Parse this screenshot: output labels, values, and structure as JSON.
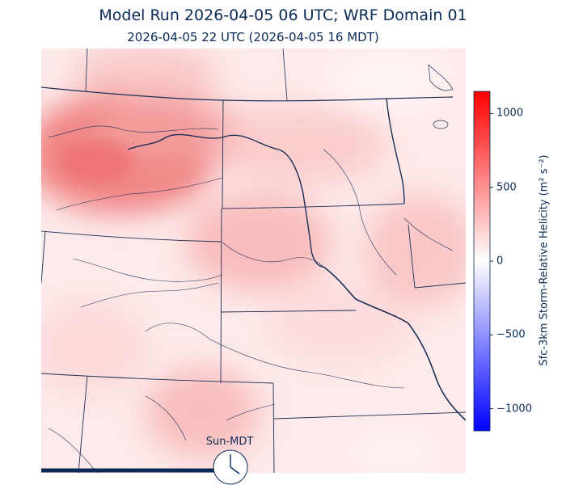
{
  "header": {
    "title": "Model Run 2026-04-05 06 UTC; WRF Domain 01",
    "subtitle": "2026-04-05 22 UTC  (2026-04-05 16 MDT)"
  },
  "colorbar": {
    "label": "Sfc-3km Storm-Relative Helicity (m² s⁻²)",
    "min": -1150,
    "max": 1150,
    "ticks": [
      {
        "value": 1000,
        "label": "1000"
      },
      {
        "value": 500,
        "label": "500"
      },
      {
        "value": 0,
        "label": "0"
      },
      {
        "value": -500,
        "label": "−500"
      },
      {
        "value": -1000,
        "label": "−1000"
      }
    ],
    "colors": {
      "low": "#0000ff",
      "mid": "#ffffff",
      "high": "#ff0000"
    }
  },
  "clock": {
    "label": "Sun-MDT",
    "progress": 0.48
  },
  "colors": {
    "boundary": "#1b2f55",
    "text": "#0b2a55"
  }
}
